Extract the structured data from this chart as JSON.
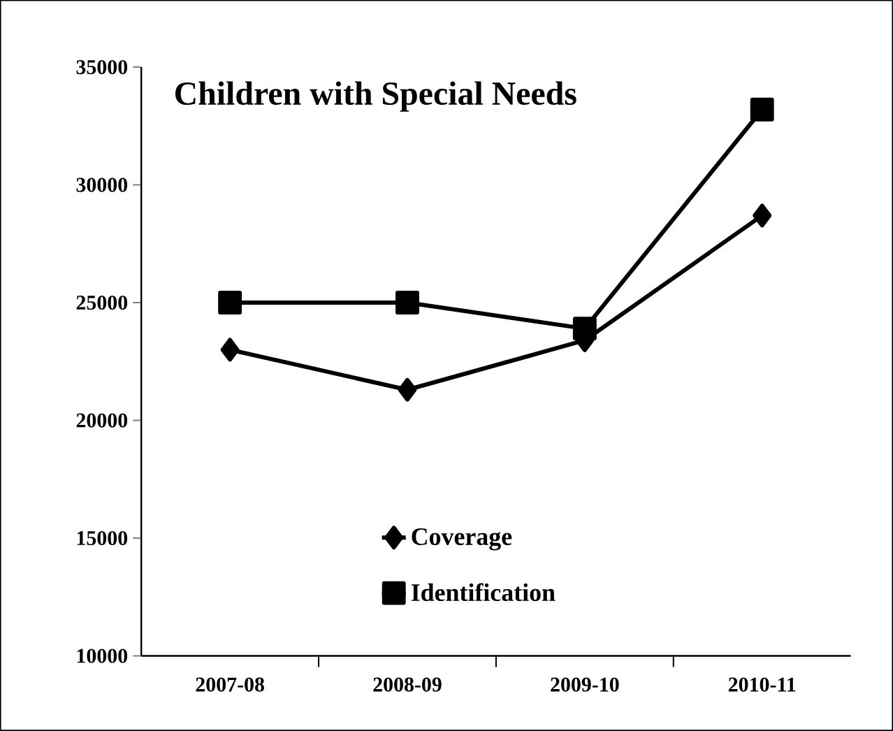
{
  "chart_data": {
    "type": "line",
    "title": "Children with Special Needs",
    "categories": [
      "2007-08",
      "2008-09",
      "2009-10",
      "2010-11"
    ],
    "series": [
      {
        "name": "Coverage",
        "color": "#000000",
        "marker": "diamond",
        "values": [
          23000,
          21300,
          23400,
          28700
        ]
      },
      {
        "name": "Identification",
        "color": "#000000",
        "marker": "square",
        "values": [
          25000,
          25000,
          23900,
          33200
        ]
      }
    ],
    "ylim": [
      10000,
      35000
    ],
    "yticks": [
      10000,
      15000,
      20000,
      25000,
      30000,
      35000
    ],
    "grid": false,
    "legend": "bottom",
    "line_style": "solid"
  }
}
